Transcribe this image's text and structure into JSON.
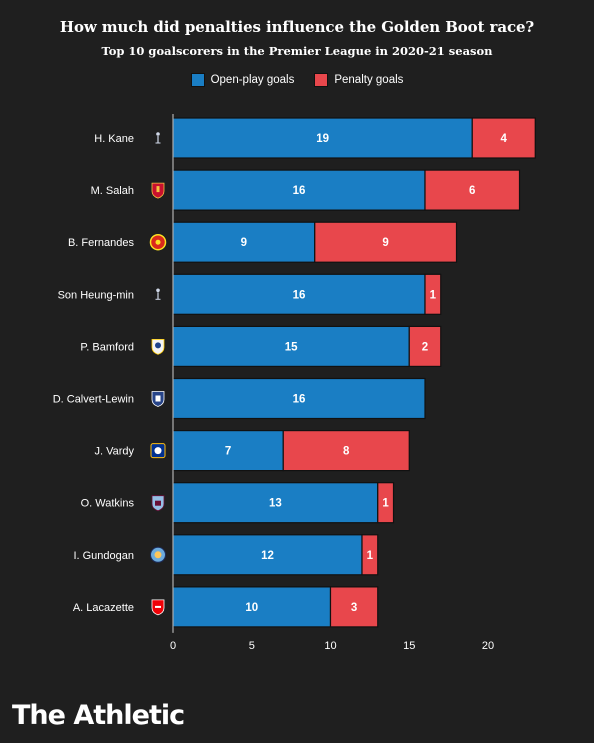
{
  "header": {
    "title": "How much did penalties influence the Golden Boot race?",
    "subtitle": "Top 10 goalscorers in the Premier League in 2020-21 season"
  },
  "legend": [
    {
      "label": "Open-play goals",
      "color": "#1a7ec4"
    },
    {
      "label": "Penalty goals",
      "color": "#e8474c"
    }
  ],
  "brand": "The Athletic",
  "chart_data": {
    "type": "bar",
    "orientation": "horizontal",
    "stacked": true,
    "categories": [
      "H. Kane",
      "M. Salah",
      "B. Fernandes",
      "Son Heung-min",
      "P. Bamford",
      "D. Calvert-Lewin",
      "J. Vardy",
      "O. Watkins",
      "I. Gundogan",
      "A. Lacazette"
    ],
    "club_crests": [
      "spurs-crest-icon",
      "liverpool-crest-icon",
      "man-utd-crest-icon",
      "spurs-crest-icon",
      "leeds-crest-icon",
      "everton-crest-icon",
      "leicester-crest-icon",
      "aston-villa-crest-icon",
      "man-city-crest-icon",
      "arsenal-crest-icon"
    ],
    "series": [
      {
        "name": "Open-play goals",
        "color": "#1a7ec4",
        "values": [
          19,
          16,
          9,
          16,
          15,
          16,
          7,
          13,
          12,
          10
        ]
      },
      {
        "name": "Penalty goals",
        "color": "#e8474c",
        "values": [
          4,
          6,
          9,
          1,
          2,
          0,
          8,
          1,
          1,
          3
        ]
      }
    ],
    "xlim": [
      0,
      23
    ],
    "xticks": [
      0,
      5,
      10,
      15,
      20
    ],
    "xlabel": "",
    "ylabel": "",
    "grid": false
  }
}
